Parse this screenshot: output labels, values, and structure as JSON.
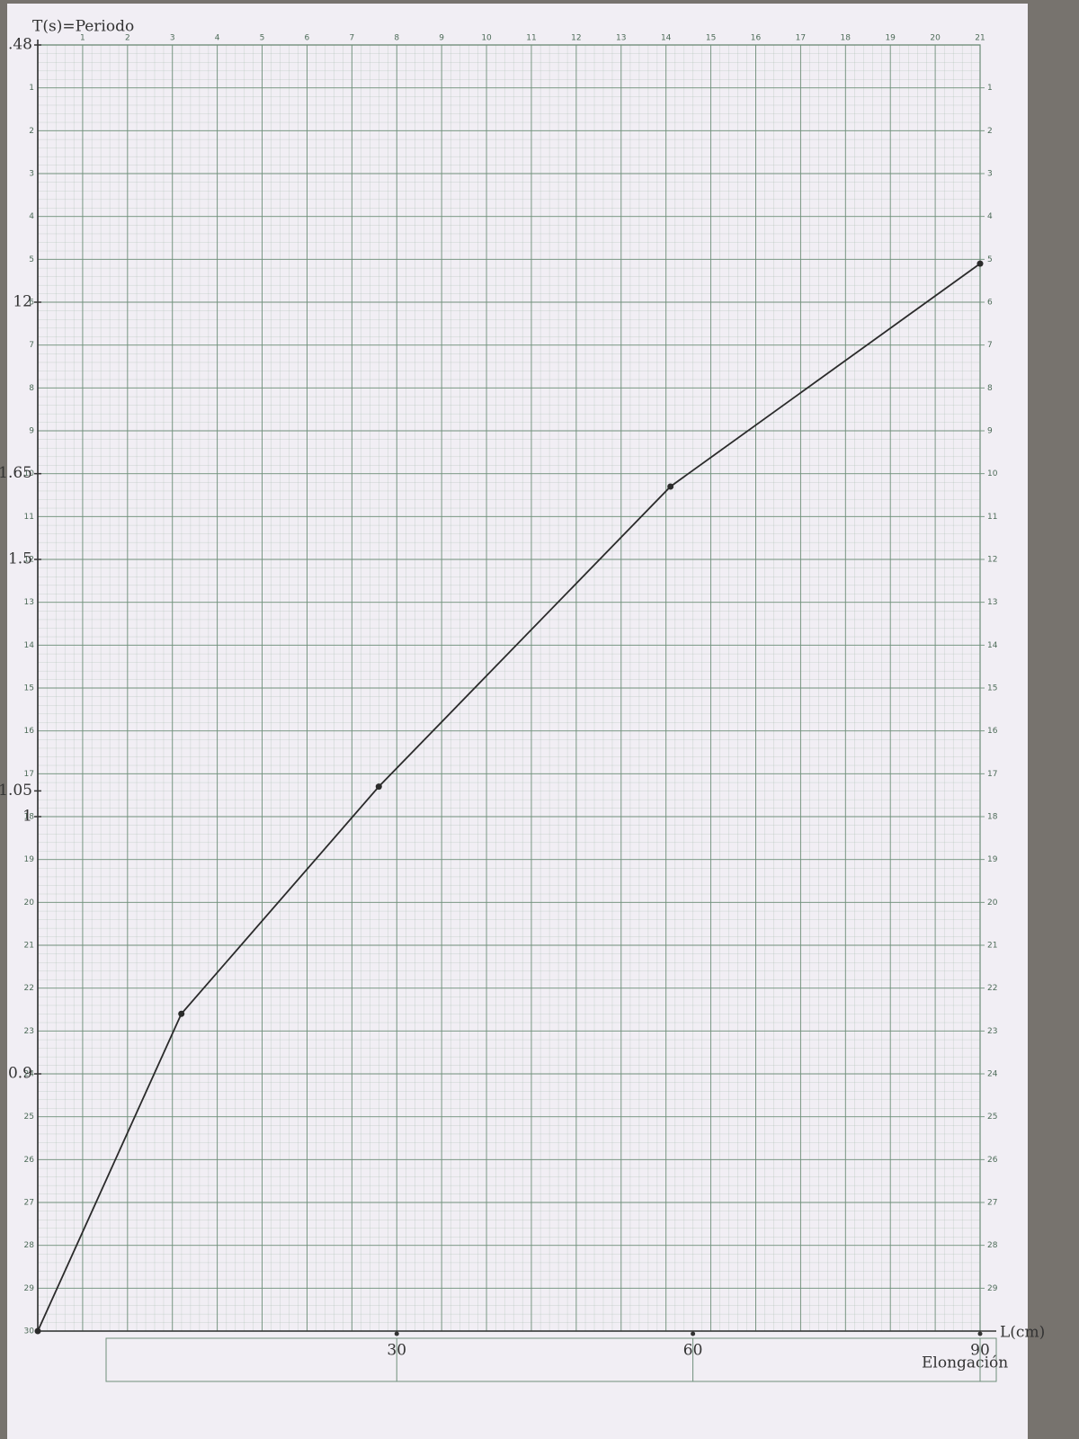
{
  "chart_data": {
    "type": "line",
    "title": "T(s)=Periodo",
    "x_label": "L(cm)",
    "x_label_2": "Elongación",
    "xlim": [
      0,
      21
    ],
    "ylim": [
      30,
      0
    ],
    "y2lim": [
      30,
      0
    ],
    "xticks": [
      1,
      2,
      3,
      4,
      5,
      6,
      7,
      8,
      9,
      10,
      11,
      12,
      13,
      14,
      15,
      16,
      17,
      18,
      19,
      20,
      21
    ],
    "yticks": [
      1,
      2,
      3,
      4,
      5,
      6,
      7,
      8,
      9,
      10,
      11,
      12,
      13,
      14,
      15,
      16,
      17,
      18,
      19,
      20,
      21,
      22,
      23,
      24,
      25,
      26,
      27,
      28,
      29,
      30
    ],
    "y2ticks": [
      1,
      2,
      3,
      4,
      5,
      6,
      7,
      8,
      9,
      10,
      11,
      12,
      13,
      14,
      15,
      16,
      17,
      18,
      19,
      20,
      21,
      22,
      23,
      24,
      25,
      26,
      27,
      28,
      29
    ],
    "grid": true,
    "x": [
      0,
      3.2,
      7.6,
      14.1,
      21
    ],
    "values": [
      30,
      22.6,
      17.3,
      10.3,
      5.1
    ],
    "color": "#2b2b2b",
    "hand_y_labels": [
      {
        "label": ".48",
        "y": 0
      },
      {
        "label": "12",
        "y": 6
      },
      {
        "label": "1.65",
        "y": 10
      },
      {
        "label": "1.5",
        "y": 12
      },
      {
        "label": "1.05",
        "y": 17.4
      },
      {
        "label": "1",
        "y": 18
      },
      {
        "label": "0.9",
        "y": 24
      }
    ],
    "hand_x_labels": [
      {
        "label": "30",
        "x": 8
      },
      {
        "label": "60",
        "x": 14.6
      },
      {
        "label": "90",
        "x": 21
      }
    ]
  }
}
